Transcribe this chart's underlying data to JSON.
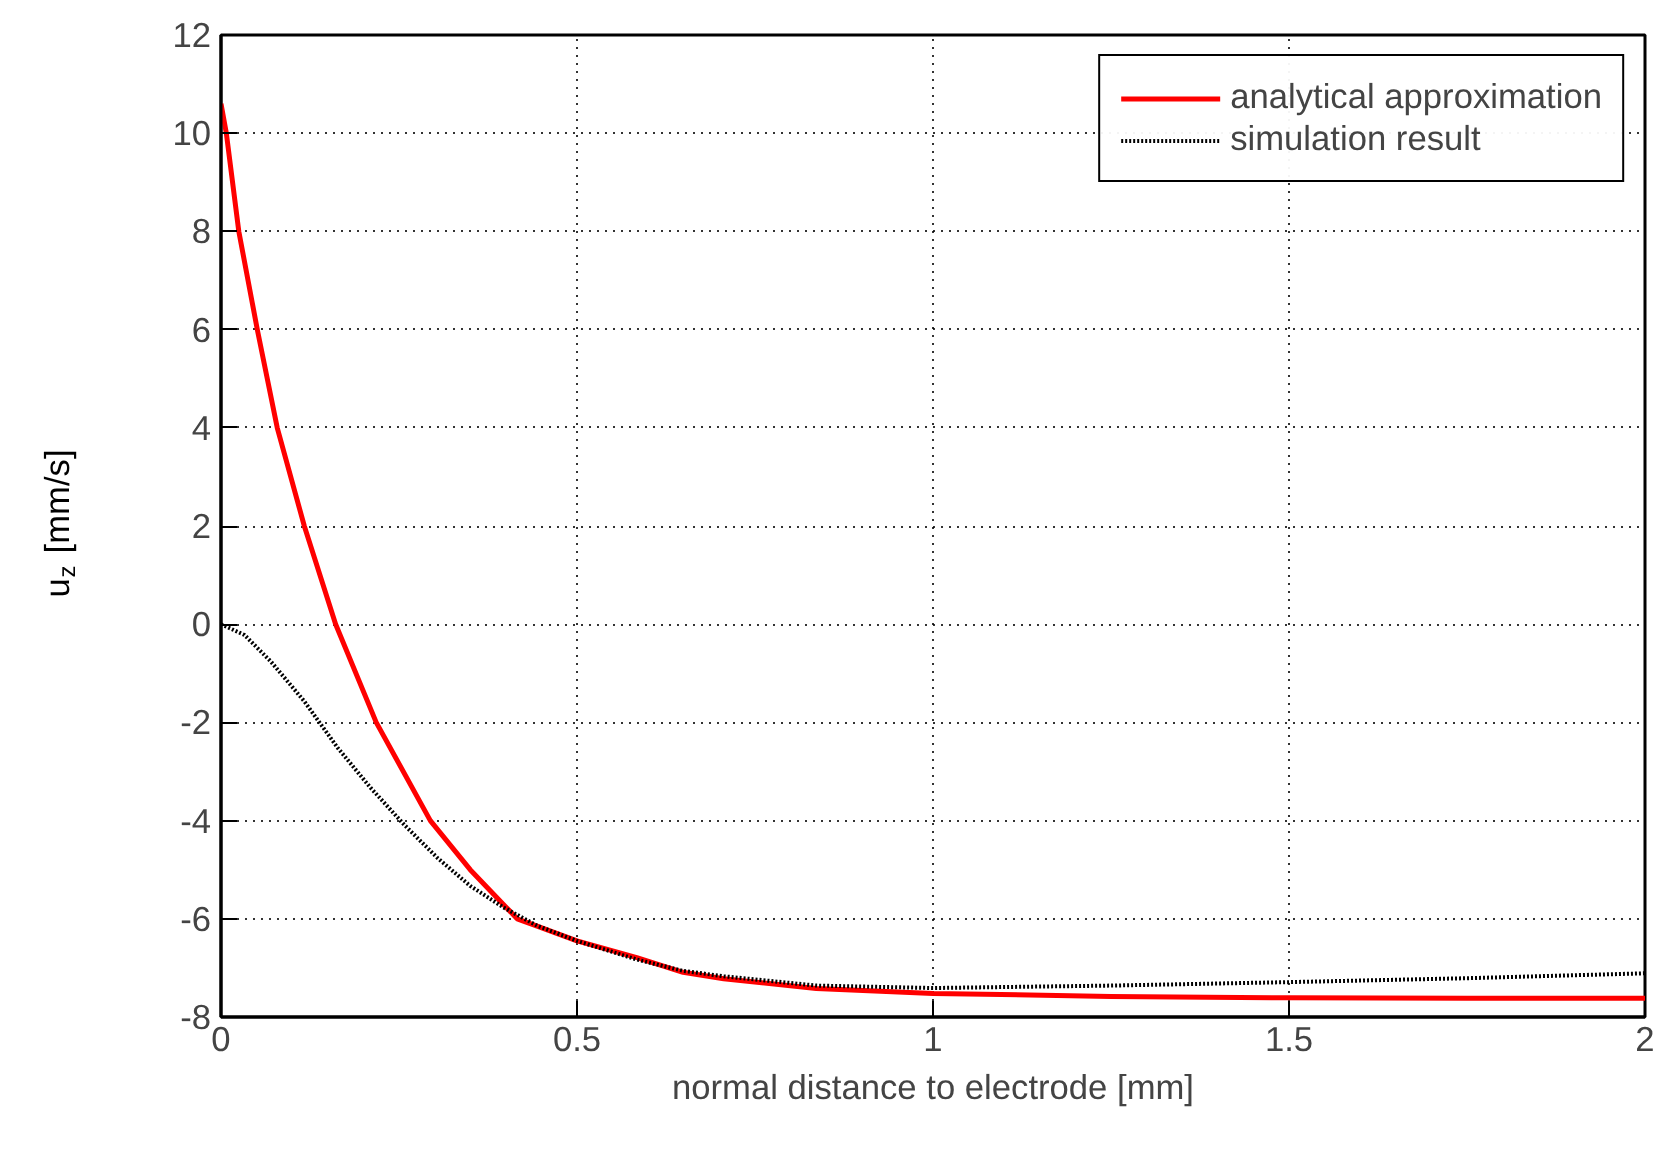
{
  "chart_data": {
    "type": "line",
    "xlabel": "normal distance to electrode [mm]",
    "ylabel": "u$_{z}$ [mm/s]",
    "xlim": [
      0,
      2
    ],
    "ylim": [
      -8,
      12
    ],
    "xticks": [
      0,
      0.5,
      1,
      1.5,
      2
    ],
    "yticks": [
      -8,
      -6,
      -4,
      -2,
      0,
      2,
      4,
      6,
      8,
      10,
      12
    ],
    "grid": true,
    "legend": "top right",
    "series": [
      {
        "name": "analytical approximation",
        "color": "#ff0000",
        "line_style": "solid",
        "x": [
          0,
          0.0075,
          0.025,
          0.051,
          0.079,
          0.117,
          0.161,
          0.218,
          0.294,
          0.35,
          0.416,
          0.444,
          0.5,
          0.584,
          0.649,
          0.706,
          0.836,
          1.0,
          1.25,
          1.5,
          1.75,
          2.0
        ],
        "values": [
          10.6,
          10,
          8,
          6,
          4,
          2,
          0,
          -2,
          -4,
          -5.0,
          -6,
          -6.15,
          -6.45,
          -6.79,
          -7.09,
          -7.22,
          -7.42,
          -7.52,
          -7.58,
          -7.61,
          -7.62,
          -7.62
        ]
      },
      {
        "name": "simulation result",
        "color": "#000000",
        "line_style": "dotted",
        "x": [
          0,
          0.033,
          0.07,
          0.117,
          0.164,
          0.21,
          0.257,
          0.304,
          0.35,
          0.397,
          0.444,
          0.5,
          0.584,
          0.649,
          0.706,
          0.836,
          1.0,
          1.25,
          1.5,
          1.75,
          2.0
        ],
        "values": [
          0,
          -0.22,
          -0.76,
          -1.57,
          -2.52,
          -3.33,
          -4.08,
          -4.76,
          -5.33,
          -5.77,
          -6.14,
          -6.45,
          -6.83,
          -7.06,
          -7.17,
          -7.36,
          -7.41,
          -7.36,
          -7.29,
          -7.21,
          -7.11
        ]
      }
    ]
  }
}
